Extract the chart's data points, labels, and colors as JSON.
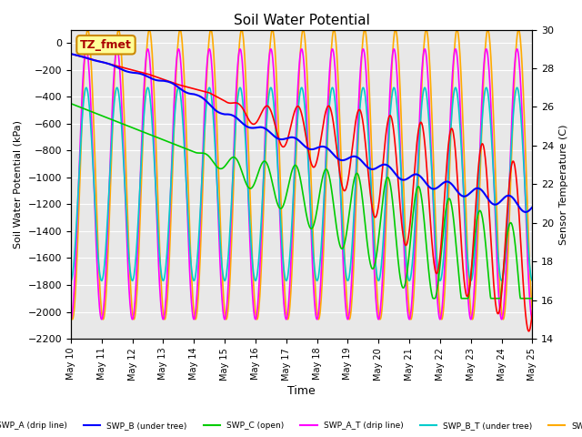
{
  "title": "Soil Water Potential",
  "xlabel": "Time",
  "ylabel_left": "Soil Water Potential (kPa)",
  "ylabel_right": "Sensor Temperature (C)",
  "ylim_left": [
    -2200,
    100
  ],
  "ylim_right": [
    14,
    30
  ],
  "yticks_left": [
    0,
    -200,
    -400,
    -600,
    -800,
    -1000,
    -1200,
    -1400,
    -1600,
    -1800,
    -2000,
    -2200
  ],
  "yticks_right": [
    14,
    16,
    18,
    20,
    22,
    24,
    26,
    28,
    30
  ],
  "xtick_labels": [
    "May 10",
    "May 11",
    "May 12",
    "May 13",
    "May 14",
    "May 15",
    "May 16",
    "May 17",
    "May 18",
    "May 19",
    "May 20",
    "May 21",
    "May 22",
    "May 23",
    "May 24",
    "May 25"
  ],
  "legend_box_color": "#ffff99",
  "legend_box_text": "TZ_fmet",
  "legend_box_border": "#cc8800",
  "lines": [
    {
      "label": "SWP_A (drip line)",
      "color": "#ff0000"
    },
    {
      "label": "SWP_B (under tree)",
      "color": "#0000ff"
    },
    {
      "label": "SWP_C (open)",
      "color": "#00cc00"
    },
    {
      "label": "SWP_A_T (drip line)",
      "color": "#ff00ff"
    },
    {
      "label": "SWP_B_T (under tree)",
      "color": "#00cccc"
    },
    {
      "label": "SWP_C_T",
      "color": "#ffaa00"
    }
  ],
  "background_color": "#e8e8e8",
  "grid_color": "#ffffff",
  "n_days": 15,
  "n_points": 1000,
  "lw": 1.2
}
